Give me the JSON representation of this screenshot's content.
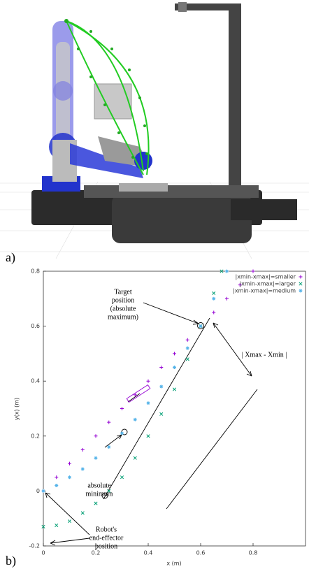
{
  "panel_labels": [
    "a)",
    "b)"
  ],
  "chart_data": {
    "type": "scatter",
    "x_label": "x (m)",
    "y_label": "y(x) (m)",
    "xlim": [
      0,
      1
    ],
    "ylim": [
      -0.2,
      0.8
    ],
    "xticks": [
      0,
      0.2,
      0.4,
      0.6,
      0.8
    ],
    "yticks": [
      -0.2,
      0,
      0.2,
      0.4,
      0.6,
      0.8
    ],
    "grid": false,
    "legend": "top-right",
    "series": [
      {
        "name": "|xmin-xmax|=smaller",
        "color": "#9400d3",
        "marker": "plus",
        "x": [
          0,
          0.05,
          0.1,
          0.15,
          0.2,
          0.25,
          0.3,
          0.35,
          0.4,
          0.45,
          0.5,
          0.55,
          0.6,
          0.65,
          0.7,
          0.75,
          0.8
        ],
        "values": [
          0,
          0.05,
          0.1,
          0.15,
          0.2,
          0.25,
          0.3,
          0.35,
          0.4,
          0.45,
          0.5,
          0.55,
          0.6,
          0.65,
          0.7,
          0.75,
          0.8
        ]
      },
      {
        "name": "|xmin-xmax|=larger",
        "color": "#009e73",
        "marker": "cross",
        "x": [
          0,
          0.05,
          0.1,
          0.15,
          0.2,
          0.25,
          0.3,
          0.35,
          0.4,
          0.45,
          0.5,
          0.55,
          0.6,
          0.65,
          0.68
        ],
        "values": [
          -0.13,
          -0.125,
          -0.11,
          -0.08,
          -0.045,
          0,
          0.05,
          0.12,
          0.2,
          0.28,
          0.37,
          0.48,
          0.6,
          0.72,
          0.8
        ]
      },
      {
        "name": "|xmin-xmax|=medium",
        "color": "#56b4e9",
        "marker": "star",
        "x": [
          0,
          0.05,
          0.1,
          0.15,
          0.2,
          0.25,
          0.3,
          0.35,
          0.4,
          0.45,
          0.5,
          0.55,
          0.6,
          0.65,
          0.7
        ],
        "values": [
          0,
          0.02,
          0.05,
          0.08,
          0.12,
          0.16,
          0.21,
          0.26,
          0.32,
          0.38,
          0.45,
          0.52,
          0.6,
          0.7,
          0.8
        ]
      }
    ],
    "annotations": [
      [
        "Target",
        "position",
        "(absolute",
        "maximum)"
      ],
      [
        "absolute",
        "minimum"
      ],
      [
        "Robot's",
        "end-effector",
        "position"
      ],
      [
        "| Xmax - Xmin |"
      ]
    ]
  }
}
